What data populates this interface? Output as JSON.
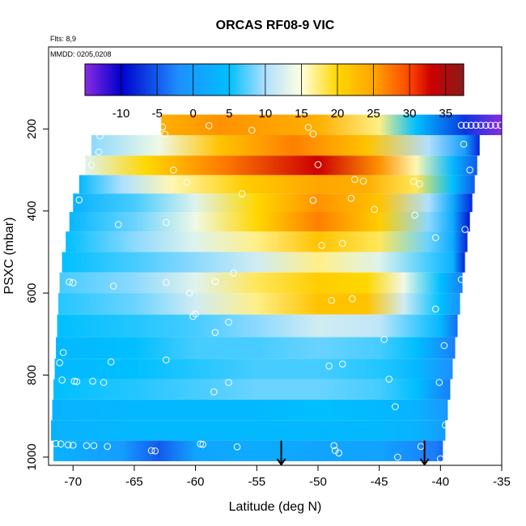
{
  "chart_data": {
    "type": "heatmap",
    "title": "ORCAS RF08-9 VIC",
    "annotations": {
      "flights": "Flts: 8,9",
      "dates": "MMDD: 0205,0208"
    },
    "xlabel": "Latitude (deg N)",
    "ylabel": "PSXC (mbar)",
    "xlim": [
      -72,
      -35
    ],
    "ylim": [
      1020,
      0
    ],
    "x_ticks": [
      -70,
      -65,
      -60,
      -55,
      -50,
      -45,
      -40,
      -35
    ],
    "y_ticks": [
      200,
      400,
      600,
      800,
      1000
    ],
    "colorbar": {
      "range": [
        -15,
        37.5
      ],
      "ticks": [
        -10,
        -5,
        0,
        5,
        10,
        15,
        20,
        25,
        30,
        35
      ],
      "colors": [
        "#8a2be2",
        "#0000cd",
        "#1e90ff",
        "#00bfff",
        "#b0e0ff",
        "#ffffe0",
        "#ffd700",
        "#ffa500",
        "#ff4500",
        "#cc0000",
        "#8b1a1a"
      ],
      "color_stops": [
        -15,
        -10,
        -2,
        5,
        10,
        15,
        20,
        25,
        30,
        33,
        37.5
      ]
    },
    "levels": [
      {
        "p": 190,
        "lat_min": -62.8,
        "lat_max": -34.5,
        "nodes": [
          [
            -62.8,
            24
          ],
          [
            -58,
            26
          ],
          [
            -50,
            24
          ],
          [
            -45,
            17
          ],
          [
            -42,
            5
          ],
          [
            -38,
            -7
          ],
          [
            -35,
            -15
          ]
        ]
      },
      {
        "p": 240,
        "lat_min": -68.5,
        "lat_max": -36.8,
        "nodes": [
          [
            -68.5,
            9
          ],
          [
            -63,
            14
          ],
          [
            -58,
            22
          ],
          [
            -52,
            27
          ],
          [
            -46,
            22
          ],
          [
            -41,
            10
          ],
          [
            -38,
            0
          ],
          [
            -36.8,
            -8
          ]
        ]
      },
      {
        "p": 290,
        "lat_min": -69.0,
        "lat_max": -37.0,
        "nodes": [
          [
            -69,
            13
          ],
          [
            -64,
            20
          ],
          [
            -58,
            27
          ],
          [
            -50,
            33
          ],
          [
            -45,
            26
          ],
          [
            -42,
            16
          ],
          [
            -39,
            4
          ],
          [
            -37,
            -5
          ]
        ]
      },
      {
        "p": 335,
        "lat_min": -69.5,
        "lat_max": -37.2,
        "nodes": [
          [
            -69.5,
            4
          ],
          [
            -66,
            10
          ],
          [
            -62,
            16
          ],
          [
            -56,
            21
          ],
          [
            -50,
            25
          ],
          [
            -46,
            24
          ],
          [
            -42,
            18
          ],
          [
            -39,
            5
          ],
          [
            -37.2,
            -5
          ]
        ]
      },
      {
        "p": 380,
        "lat_min": -70.0,
        "lat_max": -37.4,
        "nodes": [
          [
            -70,
            3
          ],
          [
            -65,
            7
          ],
          [
            -60,
            13
          ],
          [
            -55,
            20
          ],
          [
            -50,
            26
          ],
          [
            -45,
            22
          ],
          [
            -41,
            10
          ],
          [
            -39,
            2
          ],
          [
            -37.4,
            -8
          ]
        ]
      },
      {
        "p": 425,
        "lat_min": -70.3,
        "lat_max": -37.6,
        "nodes": [
          [
            -70.3,
            4
          ],
          [
            -65,
            8
          ],
          [
            -60,
            14
          ],
          [
            -55,
            20
          ],
          [
            -50,
            27
          ],
          [
            -45,
            21
          ],
          [
            -41,
            9
          ],
          [
            -39,
            2
          ],
          [
            -37.6,
            -9
          ]
        ]
      },
      {
        "p": 475,
        "lat_min": -70.6,
        "lat_max": -37.8,
        "nodes": [
          [
            -70.6,
            5
          ],
          [
            -65,
            9
          ],
          [
            -60,
            13
          ],
          [
            -55,
            17
          ],
          [
            -50,
            22
          ],
          [
            -45,
            18
          ],
          [
            -41,
            8
          ],
          [
            -39,
            2
          ],
          [
            -37.8,
            -8
          ]
        ]
      },
      {
        "p": 525,
        "lat_min": -70.9,
        "lat_max": -38.0,
        "nodes": [
          [
            -70.9,
            5
          ],
          [
            -65,
            7
          ],
          [
            -60,
            9
          ],
          [
            -55,
            12
          ],
          [
            -50,
            17
          ],
          [
            -45,
            13
          ],
          [
            -41,
            7
          ],
          [
            -39,
            3
          ],
          [
            -38,
            -8
          ]
        ]
      },
      {
        "p": 575,
        "lat_min": -71.1,
        "lat_max": -38.2,
        "nodes": [
          [
            -71.1,
            7
          ],
          [
            -65,
            9
          ],
          [
            -60,
            13
          ],
          [
            -55,
            18
          ],
          [
            -50,
            21
          ],
          [
            -46,
            20
          ],
          [
            -43,
            14
          ],
          [
            -40,
            5
          ],
          [
            -38.2,
            -3
          ]
        ]
      },
      {
        "p": 625,
        "lat_min": -71.2,
        "lat_max": -38.4,
        "nodes": [
          [
            -71.2,
            6
          ],
          [
            -65,
            8
          ],
          [
            -60,
            12
          ],
          [
            -55,
            17
          ],
          [
            -50,
            22
          ],
          [
            -46,
            22
          ],
          [
            -43,
            12
          ],
          [
            -40,
            5
          ],
          [
            -38.4,
            -2
          ]
        ]
      },
      {
        "p": 680,
        "lat_min": -71.3,
        "lat_max": -38.6,
        "nodes": [
          [
            -71.3,
            5
          ],
          [
            -65,
            6
          ],
          [
            -60,
            7
          ],
          [
            -55,
            9
          ],
          [
            -50,
            12
          ],
          [
            -45,
            11
          ],
          [
            -42,
            7
          ],
          [
            -40,
            4
          ],
          [
            -38.6,
            -4
          ]
        ]
      },
      {
        "p": 735,
        "lat_min": -71.4,
        "lat_max": -38.8,
        "nodes": [
          [
            -71.4,
            4
          ],
          [
            -65,
            5
          ],
          [
            -60,
            7
          ],
          [
            -55,
            7
          ],
          [
            -50,
            8
          ],
          [
            -45,
            7
          ],
          [
            -42,
            5
          ],
          [
            -38.8,
            -3
          ]
        ]
      },
      {
        "p": 785,
        "lat_min": -71.5,
        "lat_max": -39.0,
        "nodes": [
          [
            -71.5,
            4
          ],
          [
            -65,
            5
          ],
          [
            -60,
            6
          ],
          [
            -55,
            7
          ],
          [
            -50,
            7
          ],
          [
            -45,
            6
          ],
          [
            -42,
            4
          ],
          [
            -39,
            -2
          ]
        ]
      },
      {
        "p": 835,
        "lat_min": -71.6,
        "lat_max": -39.2,
        "nodes": [
          [
            -71.6,
            5
          ],
          [
            -65,
            6
          ],
          [
            -60,
            7
          ],
          [
            -55,
            8
          ],
          [
            -50,
            8
          ],
          [
            -45,
            7
          ],
          [
            -42,
            5
          ],
          [
            -39.2,
            -3
          ]
        ]
      },
      {
        "p": 885,
        "lat_min": -71.7,
        "lat_max": -39.4,
        "nodes": [
          [
            -71.7,
            3
          ],
          [
            -65,
            4
          ],
          [
            -60,
            4
          ],
          [
            -55,
            4
          ],
          [
            -50,
            5
          ],
          [
            -45,
            4
          ],
          [
            -42,
            3
          ],
          [
            -39.4,
            -1
          ]
        ]
      },
      {
        "p": 935,
        "lat_min": -71.8,
        "lat_max": -39.6,
        "nodes": [
          [
            -71.8,
            3
          ],
          [
            -65,
            4
          ],
          [
            -60,
            4
          ],
          [
            -55,
            4
          ],
          [
            -50,
            4
          ],
          [
            -45,
            4
          ],
          [
            -42,
            3
          ],
          [
            -39.6,
            0
          ]
        ]
      },
      {
        "p": 985,
        "lat_min": -71.6,
        "lat_max": -39.8,
        "nodes": [
          [
            -71.6,
            3
          ],
          [
            -66,
            0
          ],
          [
            -63,
            -5
          ],
          [
            -60,
            1
          ],
          [
            -55,
            2
          ],
          [
            -50,
            1
          ],
          [
            -45,
            1
          ],
          [
            -40.5,
            -3
          ],
          [
            -39.8,
            -4
          ]
        ]
      }
    ],
    "points": [
      [
        -62.7,
        195
      ],
      [
        -58.9,
        192
      ],
      [
        -55.4,
        203
      ],
      [
        -50.8,
        196
      ],
      [
        -38.3,
        191
      ],
      [
        -37.9,
        191
      ],
      [
        -37.5,
        191
      ],
      [
        -37.1,
        191
      ],
      [
        -36.7,
        191
      ],
      [
        -36.3,
        191
      ],
      [
        -35.9,
        191
      ],
      [
        -35.5,
        191
      ],
      [
        -35.1,
        191
      ],
      [
        -67.8,
        217
      ],
      [
        -62.5,
        213
      ],
      [
        -50.4,
        212
      ],
      [
        -38.1,
        237
      ],
      [
        -67.9,
        256
      ],
      [
        -50.0,
        287
      ],
      [
        -68.5,
        288
      ],
      [
        -61.8,
        300
      ],
      [
        -60.7,
        330
      ],
      [
        -47.0,
        323
      ],
      [
        -46.3,
        327
      ],
      [
        -42.2,
        328
      ],
      [
        -41.7,
        334
      ],
      [
        -37.6,
        300
      ],
      [
        -69.5,
        373
      ],
      [
        -56.2,
        358
      ],
      [
        -50.4,
        374
      ],
      [
        -47.3,
        369
      ],
      [
        -45.4,
        396
      ],
      [
        -42.1,
        410
      ],
      [
        -66.3,
        433
      ],
      [
        -62.4,
        428
      ],
      [
        -38.0,
        445
      ],
      [
        -49.7,
        484
      ],
      [
        -48.0,
        479
      ],
      [
        -40.4,
        465
      ],
      [
        -56.9,
        551
      ],
      [
        -70.3,
        573
      ],
      [
        -70.0,
        575
      ],
      [
        -66.7,
        583
      ],
      [
        -62.4,
        574
      ],
      [
        -58.4,
        572
      ],
      [
        -38.3,
        567
      ],
      [
        -60.5,
        600
      ],
      [
        -48.9,
        618
      ],
      [
        -47.2,
        614
      ],
      [
        -40.4,
        639
      ],
      [
        -57.3,
        671
      ],
      [
        -58.4,
        696
      ],
      [
        -44.6,
        713
      ],
      [
        -60.0,
        651
      ],
      [
        -60.2,
        657
      ],
      [
        -39.7,
        728
      ],
      [
        -70.8,
        745
      ],
      [
        -62.4,
        763
      ],
      [
        -66.9,
        768
      ],
      [
        -71.1,
        770
      ],
      [
        -49.1,
        778
      ],
      [
        -48.0,
        773
      ],
      [
        -70.9,
        812
      ],
      [
        -69.9,
        815
      ],
      [
        -69.7,
        816
      ],
      [
        -68.4,
        815
      ],
      [
        -67.5,
        818
      ],
      [
        -57.3,
        818
      ],
      [
        -58.5,
        841
      ],
      [
        -44.2,
        810
      ],
      [
        -40.1,
        818
      ],
      [
        -43.7,
        877
      ],
      [
        -39.6,
        922
      ],
      [
        -71.4,
        967
      ],
      [
        -71.0,
        968
      ],
      [
        -70.4,
        970
      ],
      [
        -70.0,
        971
      ],
      [
        -68.9,
        972
      ],
      [
        -68.3,
        972
      ],
      [
        -67.2,
        974
      ],
      [
        -63.6,
        984
      ],
      [
        -63.3,
        985
      ],
      [
        -59.6,
        968
      ],
      [
        -59.4,
        969
      ],
      [
        -56.6,
        975
      ],
      [
        -48.7,
        972
      ],
      [
        -48.6,
        984
      ],
      [
        -48.3,
        990
      ],
      [
        -43.5,
        1000
      ],
      [
        -41.6,
        974
      ],
      [
        -40.0,
        1004
      ]
    ],
    "arrows": [
      [
        -53.0,
        960,
        1018
      ],
      [
        -41.3,
        960,
        1018
      ]
    ]
  }
}
